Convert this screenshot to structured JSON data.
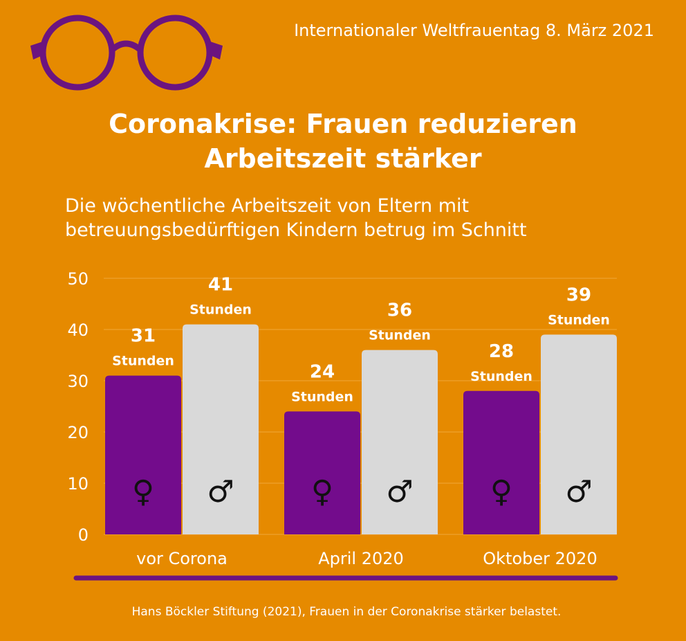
{
  "header": {
    "date_line": "Internationaler Weltfrauentag 8. März 2021"
  },
  "decoration": {
    "logo": "round-glasses-icon",
    "logo_color": "#6B1480"
  },
  "colors": {
    "background": "#E68A00",
    "women": "#730C8C",
    "men": "#D9D9D9",
    "gridline": "#F0A83A",
    "accent_line": "#6B1480"
  },
  "chart_data": {
    "type": "bar",
    "title": "Coronakrise: Frauen reduzieren Arbeitszeit stärker",
    "title_lines": [
      "Coronakrise: Frauen reduzieren",
      "Arbeitszeit stärker"
    ],
    "subtitle_lines": [
      "Die wöchentliche Arbeitszeit von Eltern mit",
      "betreuungsbedürftigen Kindern betrug im Schnitt"
    ],
    "categories": [
      "vor Corona",
      "April 2020",
      "Oktober 2020"
    ],
    "series": [
      {
        "symbol": "♀",
        "icon": "female-symbol-icon",
        "color": "#730C8C",
        "values": [
          31,
          24,
          28
        ]
      },
      {
        "symbol": "♂",
        "icon": "male-symbol-icon",
        "color": "#D9D9D9",
        "values": [
          41,
          36,
          39
        ]
      }
    ],
    "value_unit": "Stunden",
    "ylim": [
      0,
      50
    ],
    "yticks": [
      0,
      10,
      20,
      30,
      40,
      50
    ],
    "xlabel": "",
    "ylabel": "",
    "grid": true,
    "legend": "none"
  },
  "source": "Hans Böckler Stiftung (2021), Frauen in der Coronakrise stärker belastet."
}
